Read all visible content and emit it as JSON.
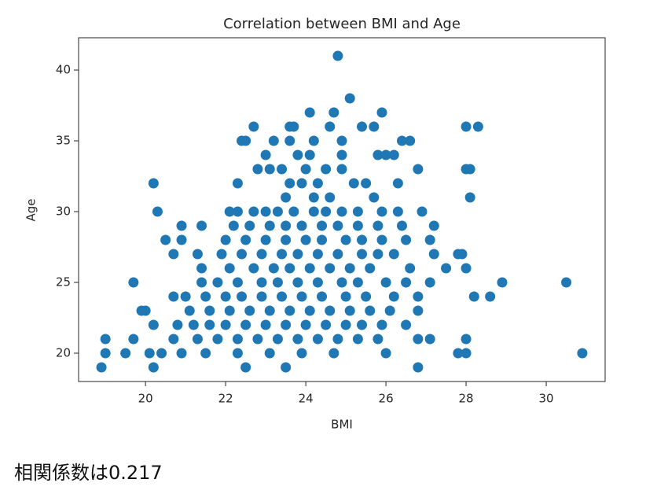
{
  "chart_data": {
    "type": "scatter",
    "title": "Correlation between BMI and Age",
    "x_label": "BMI",
    "y_label": "Age",
    "color": "#1f77b4",
    "xlim": [
      18.33,
      31.47
    ],
    "ylim": [
      18.0,
      42.28
    ],
    "xticks": [
      20,
      22,
      24,
      26,
      28,
      30
    ],
    "yticks": [
      20,
      25,
      30,
      35,
      40
    ],
    "x": [
      24.8,
      25.1,
      24.1,
      24.7,
      25.9,
      22.7,
      23.6,
      23.7,
      24.6,
      25.4,
      25.7,
      28.0,
      28.3,
      22.4,
      22.5,
      23.2,
      23.6,
      24.2,
      24.9,
      26.4,
      26.6,
      23.0,
      23.8,
      24.1,
      24.9,
      25.8,
      26.0,
      26.2,
      22.8,
      23.1,
      23.4,
      24.0,
      24.5,
      24.9,
      26.8,
      28.0,
      28.1,
      20.2,
      22.3,
      23.6,
      23.9,
      24.3,
      25.2,
      25.5,
      26.3,
      23.5,
      24.2,
      24.6,
      25.7,
      28.1,
      20.3,
      22.1,
      22.3,
      22.7,
      23.0,
      23.3,
      23.7,
      24.2,
      24.5,
      24.9,
      25.3,
      25.9,
      26.3,
      26.9,
      20.9,
      21.4,
      22.2,
      22.6,
      23.1,
      23.5,
      23.9,
      24.4,
      24.8,
      25.3,
      25.8,
      26.4,
      27.2,
      20.5,
      20.9,
      22.0,
      22.5,
      23.0,
      23.5,
      24.0,
      24.4,
      25.0,
      25.4,
      25.9,
      26.5,
      27.1,
      20.7,
      21.3,
      21.9,
      22.4,
      22.9,
      23.4,
      23.8,
      24.3,
      24.8,
      25.4,
      25.8,
      26.2,
      27.2,
      27.8,
      27.9,
      21.4,
      22.1,
      22.7,
      23.2,
      23.6,
      24.1,
      24.6,
      25.1,
      25.6,
      26.6,
      27.5,
      28.0,
      19.7,
      21.4,
      21.8,
      22.3,
      22.9,
      23.3,
      23.8,
      24.3,
      24.9,
      25.3,
      26.0,
      26.5,
      27.1,
      28.9,
      30.5,
      20.7,
      21.0,
      21.5,
      22.0,
      22.4,
      22.9,
      23.4,
      23.9,
      24.4,
      25.0,
      25.5,
      26.2,
      26.8,
      28.2,
      28.6,
      19.9,
      20.0,
      21.1,
      21.6,
      22.1,
      22.6,
      23.1,
      23.6,
      24.1,
      24.6,
      25.1,
      25.6,
      26.1,
      26.8,
      20.2,
      20.8,
      21.2,
      21.6,
      22.0,
      22.5,
      23.0,
      23.5,
      24.0,
      24.5,
      25.0,
      25.4,
      25.9,
      26.5,
      19.0,
      19.7,
      20.7,
      21.3,
      21.8,
      22.3,
      22.8,
      23.3,
      23.8,
      24.3,
      24.8,
      25.3,
      25.8,
      26.8,
      27.1,
      28.0,
      19.0,
      19.5,
      20.1,
      20.4,
      20.9,
      21.5,
      22.3,
      23.1,
      23.9,
      24.7,
      26.0,
      27.8,
      28.0,
      30.9,
      18.9,
      20.2,
      22.5,
      23.5,
      26.8
    ],
    "values": [
      41,
      38,
      37,
      37,
      37,
      36,
      36,
      36,
      36,
      36,
      36,
      36,
      36,
      35,
      35,
      35,
      35,
      35,
      35,
      35,
      35,
      34,
      34,
      34,
      34,
      34,
      34,
      34,
      33,
      33,
      33,
      33,
      33,
      33,
      33,
      33,
      33,
      32,
      32,
      32,
      32,
      32,
      32,
      32,
      32,
      31,
      31,
      31,
      31,
      31,
      30,
      30,
      30,
      30,
      30,
      30,
      30,
      30,
      30,
      30,
      30,
      30,
      30,
      30,
      29,
      29,
      29,
      29,
      29,
      29,
      29,
      29,
      29,
      29,
      29,
      29,
      29,
      28,
      28,
      28,
      28,
      28,
      28,
      28,
      28,
      28,
      28,
      28,
      28,
      28,
      27,
      27,
      27,
      27,
      27,
      27,
      27,
      27,
      27,
      27,
      27,
      27,
      27,
      27,
      27,
      26,
      26,
      26,
      26,
      26,
      26,
      26,
      26,
      26,
      26,
      26,
      26,
      25,
      25,
      25,
      25,
      25,
      25,
      25,
      25,
      25,
      25,
      25,
      25,
      25,
      25,
      25,
      24,
      24,
      24,
      24,
      24,
      24,
      24,
      24,
      24,
      24,
      24,
      24,
      24,
      24,
      24,
      23,
      23,
      23,
      23,
      23,
      23,
      23,
      23,
      23,
      23,
      23,
      23,
      23,
      23,
      22,
      22,
      22,
      22,
      22,
      22,
      22,
      22,
      22,
      22,
      22,
      22,
      22,
      22,
      21,
      21,
      21,
      21,
      21,
      21,
      21,
      21,
      21,
      21,
      21,
      21,
      21,
      21,
      21,
      21,
      20,
      20,
      20,
      20,
      20,
      20,
      20,
      20,
      20,
      20,
      20,
      20,
      20,
      20,
      19,
      19,
      19,
      19,
      19
    ]
  },
  "caption": "相関係数は0.217"
}
